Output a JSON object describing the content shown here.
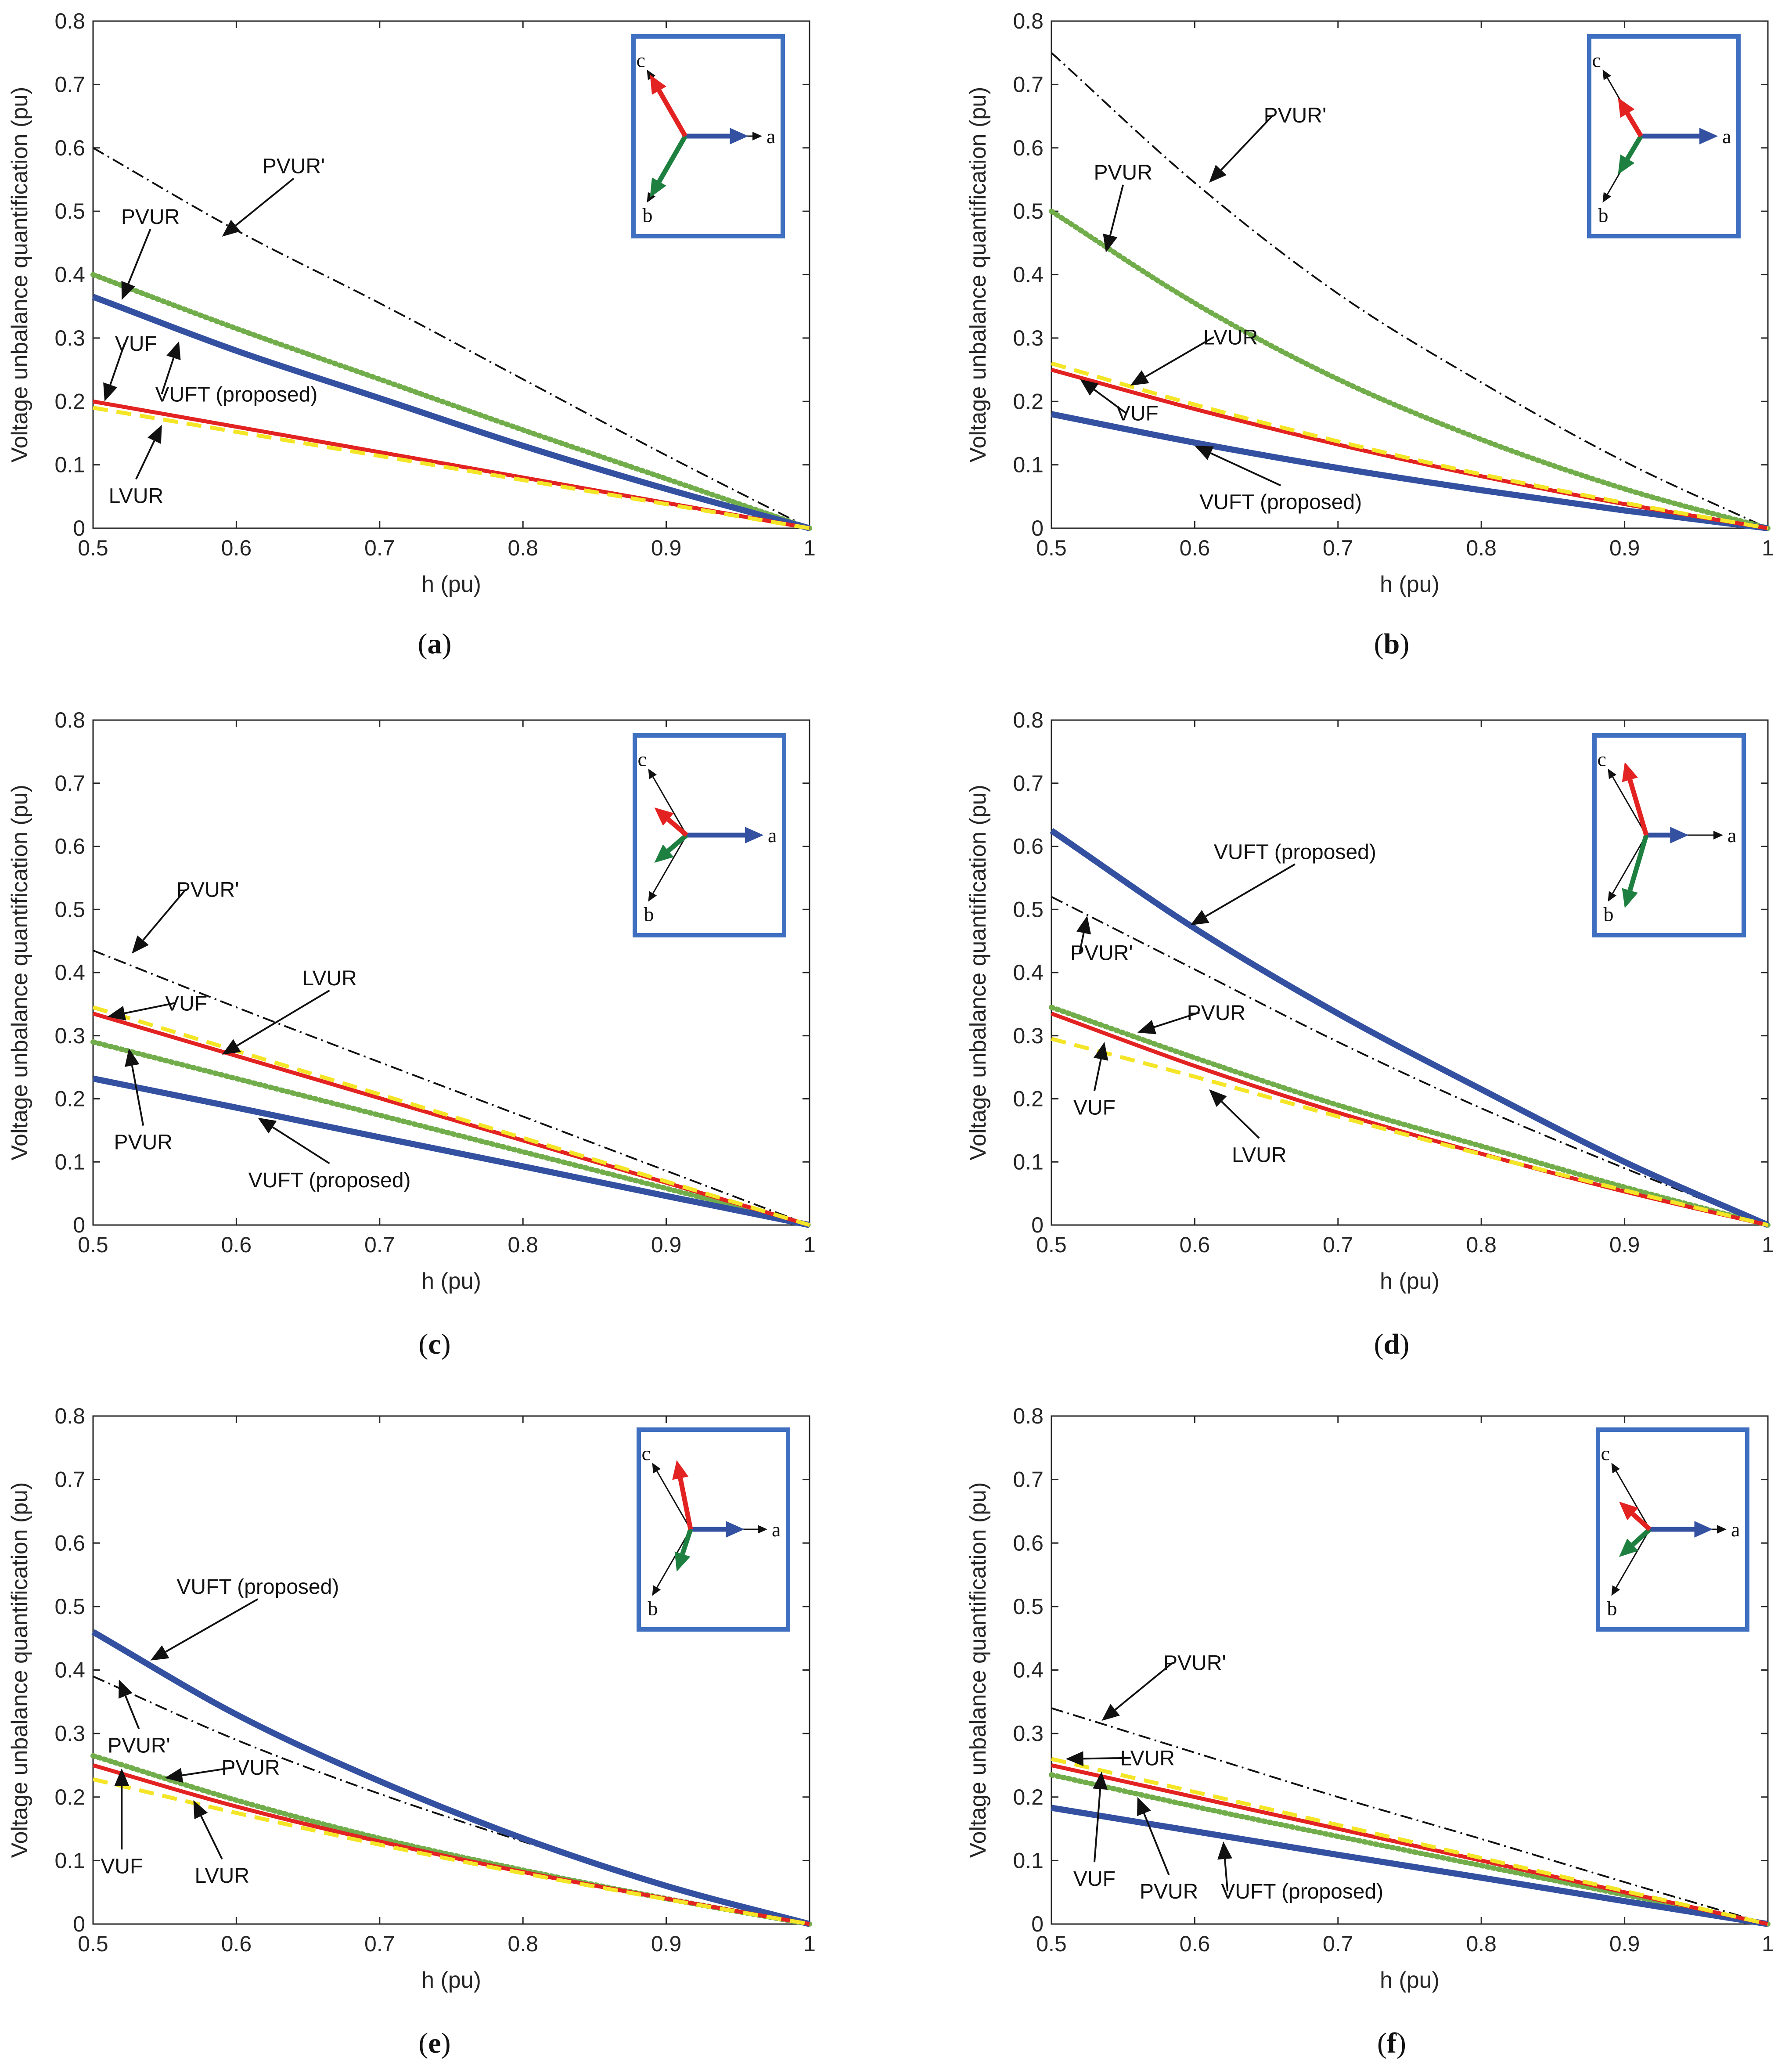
{
  "colors": {
    "VUFT": "#3451a1",
    "VUF": "#e32322",
    "LVUR": "#f4e526",
    "PVUR": "#72ad4b",
    "PVUR_prime": "#111111",
    "inset_border": "#3f6fc0",
    "phase_a": "#3451a1",
    "phase_b": "#1e8040",
    "phase_c": "#e32322"
  },
  "chart_data": [
    {
      "id": "a",
      "type": "line",
      "caption": "(a)",
      "caption_letter": "a",
      "xlabel": "h (pu)",
      "ylabel": "Voltage unbalance quantification (pu)",
      "xlim": [
        0.5,
        1
      ],
      "ylim": [
        0,
        0.8
      ],
      "xticks": [
        "0.5",
        "0.6",
        "0.7",
        "0.8",
        "0.9",
        "1"
      ],
      "yticks": [
        "0",
        "0.1",
        "0.2",
        "0.3",
        "0.4",
        "0.5",
        "0.6",
        "0.7",
        "0.8"
      ],
      "x": [
        0.5,
        0.6,
        0.7,
        0.8,
        0.9,
        1.0
      ],
      "series": [
        {
          "name": "PVUR'",
          "values": [
            0.6,
            0.47,
            0.355,
            0.235,
            0.115,
            0.0
          ]
        },
        {
          "name": "PVUR",
          "values": [
            0.4,
            0.315,
            0.235,
            0.155,
            0.078,
            0.0
          ]
        },
        {
          "name": "VUFT (proposed)",
          "values": [
            0.365,
            0.28,
            0.205,
            0.13,
            0.062,
            0.0
          ]
        },
        {
          "name": "VUF",
          "values": [
            0.2,
            0.16,
            0.12,
            0.08,
            0.04,
            0.0
          ]
        },
        {
          "name": "LVUR",
          "values": [
            0.19,
            0.152,
            0.114,
            0.076,
            0.038,
            0.0
          ]
        }
      ],
      "annotations": [
        {
          "text": "PVUR'",
          "x": 0.59,
          "y": 0.46,
          "tx": 0.64,
          "ty": 0.56
        },
        {
          "text": "PVUR",
          "x": 0.52,
          "y": 0.36,
          "tx": 0.54,
          "ty": 0.48
        },
        {
          "text": "VUF",
          "x": 0.508,
          "y": 0.2,
          "tx": 0.53,
          "ty": 0.28
        },
        {
          "text": "VUFT (proposed)",
          "x": 0.56,
          "y": 0.295,
          "tx": 0.6,
          "ty": 0.2
        },
        {
          "text": "LVUR",
          "x": 0.548,
          "y": 0.163,
          "tx": 0.53,
          "ty": 0.04
        }
      ],
      "phasor": {
        "a": [
          1,
          0
        ],
        "b": [
          -0.5,
          -0.866
        ],
        "c": [
          -0.5,
          0.866
        ],
        "ua": [
          0.82,
          0
        ],
        "ub": [
          -0.46,
          -0.8
        ],
        "uc": [
          -0.46,
          0.8
        ]
      }
    },
    {
      "id": "b",
      "type": "line",
      "caption": "(b)",
      "caption_letter": "b",
      "xlabel": "h (pu)",
      "ylabel": "Voltage unbalance quantification (pu)",
      "xlim": [
        0.5,
        1
      ],
      "ylim": [
        0,
        0.8
      ],
      "xticks": [
        "0.5",
        "0.6",
        "0.7",
        "0.8",
        "0.9",
        "1"
      ],
      "yticks": [
        "0",
        "0.1",
        "0.2",
        "0.3",
        "0.4",
        "0.5",
        "0.6",
        "0.7",
        "0.8"
      ],
      "x": [
        0.5,
        0.6,
        0.7,
        0.8,
        0.9,
        1.0
      ],
      "series": [
        {
          "name": "PVUR'",
          "values": [
            0.75,
            0.545,
            0.37,
            0.23,
            0.105,
            0.0
          ]
        },
        {
          "name": "PVUR",
          "values": [
            0.5,
            0.355,
            0.235,
            0.14,
            0.062,
            0.0
          ]
        },
        {
          "name": "LVUR",
          "values": [
            0.26,
            0.195,
            0.137,
            0.085,
            0.04,
            0.0
          ]
        },
        {
          "name": "VUF",
          "values": [
            0.25,
            0.188,
            0.132,
            0.082,
            0.038,
            0.0
          ]
        },
        {
          "name": "VUFT (proposed)",
          "values": [
            0.18,
            0.135,
            0.095,
            0.06,
            0.028,
            0.0
          ]
        }
      ],
      "annotations": [
        {
          "text": "PVUR'",
          "x": 0.61,
          "y": 0.545,
          "tx": 0.67,
          "ty": 0.64
        },
        {
          "text": "PVUR",
          "x": 0.538,
          "y": 0.435,
          "tx": 0.55,
          "ty": 0.55
        },
        {
          "text": "LVUR",
          "x": 0.555,
          "y": 0.225,
          "tx": 0.625,
          "ty": 0.29
        },
        {
          "text": "VUF",
          "x": 0.52,
          "y": 0.235,
          "tx": 0.56,
          "ty": 0.17
        },
        {
          "text": "VUFT (proposed)",
          "x": 0.6,
          "y": 0.13,
          "tx": 0.66,
          "ty": 0.03
        }
      ],
      "phasor": {
        "a": [
          1,
          0
        ],
        "b": [
          -0.5,
          -0.866
        ],
        "c": [
          -0.5,
          0.866
        ],
        "ua": [
          1.0,
          0
        ],
        "ub": [
          -0.3,
          -0.5
        ],
        "uc": [
          -0.3,
          0.5
        ]
      }
    },
    {
      "id": "c",
      "type": "line",
      "caption": "(c)",
      "caption_letter": "c",
      "xlabel": "h (pu)",
      "ylabel": "Voltage unbalance quantification (pu)",
      "xlim": [
        0.5,
        1
      ],
      "ylim": [
        0,
        0.8
      ],
      "xticks": [
        "0.5",
        "0.6",
        "0.7",
        "0.8",
        "0.9",
        "1"
      ],
      "yticks": [
        "0",
        "0.1",
        "0.2",
        "0.3",
        "0.4",
        "0.5",
        "0.6",
        "0.7",
        "0.8"
      ],
      "x": [
        0.5,
        0.6,
        0.7,
        0.8,
        0.9,
        1.0
      ],
      "series": [
        {
          "name": "PVUR'",
          "values": [
            0.435,
            0.345,
            0.258,
            0.172,
            0.086,
            0.0
          ]
        },
        {
          "name": "LVUR",
          "values": [
            0.345,
            0.276,
            0.207,
            0.138,
            0.069,
            0.0
          ]
        },
        {
          "name": "VUF",
          "values": [
            0.335,
            0.268,
            0.201,
            0.134,
            0.067,
            0.0
          ]
        },
        {
          "name": "PVUR",
          "values": [
            0.29,
            0.232,
            0.174,
            0.116,
            0.058,
            0.0
          ]
        },
        {
          "name": "VUFT (proposed)",
          "values": [
            0.232,
            0.186,
            0.139,
            0.093,
            0.046,
            0.0
          ]
        }
      ],
      "annotations": [
        {
          "text": "PVUR'",
          "x": 0.527,
          "y": 0.43,
          "tx": 0.58,
          "ty": 0.52
        },
        {
          "text": "VUF",
          "x": 0.51,
          "y": 0.33,
          "tx": 0.565,
          "ty": 0.34
        },
        {
          "text": "LVUR",
          "x": 0.59,
          "y": 0.27,
          "tx": 0.665,
          "ty": 0.38
        },
        {
          "text": "PVUR",
          "x": 0.525,
          "y": 0.28,
          "tx": 0.535,
          "ty": 0.12
        },
        {
          "text": "VUFT (proposed)",
          "x": 0.615,
          "y": 0.17,
          "tx": 0.665,
          "ty": 0.06
        }
      ],
      "phasor": {
        "a": [
          1,
          0
        ],
        "b": [
          -0.5,
          -0.866
        ],
        "c": [
          -0.5,
          0.866
        ],
        "ua": [
          1.0,
          0
        ],
        "ub": [
          -0.42,
          -0.36
        ],
        "uc": [
          -0.42,
          0.36
        ]
      }
    },
    {
      "id": "d",
      "type": "line",
      "caption": "(d)",
      "caption_letter": "d",
      "xlabel": "h (pu)",
      "ylabel": "Voltage unbalance quantification (pu)",
      "xlim": [
        0.5,
        1
      ],
      "ylim": [
        0,
        0.8
      ],
      "xticks": [
        "0.5",
        "0.6",
        "0.7",
        "0.8",
        "0.9",
        "1"
      ],
      "yticks": [
        "0",
        "0.1",
        "0.2",
        "0.3",
        "0.4",
        "0.5",
        "0.6",
        "0.7",
        "0.8"
      ],
      "x": [
        0.5,
        0.6,
        0.7,
        0.8,
        0.9,
        1.0
      ],
      "series": [
        {
          "name": "VUFT (proposed)",
          "values": [
            0.625,
            0.47,
            0.335,
            0.215,
            0.1,
            0.0
          ]
        },
        {
          "name": "PVUR'",
          "values": [
            0.52,
            0.405,
            0.29,
            0.185,
            0.09,
            0.0
          ]
        },
        {
          "name": "PVUR",
          "values": [
            0.345,
            0.265,
            0.19,
            0.125,
            0.06,
            0.0
          ]
        },
        {
          "name": "VUF",
          "values": [
            0.335,
            0.252,
            0.178,
            0.113,
            0.053,
            0.0
          ]
        },
        {
          "name": "LVUR",
          "values": [
            0.295,
            0.235,
            0.172,
            0.112,
            0.055,
            0.0
          ]
        }
      ],
      "annotations": [
        {
          "text": "VUFT (proposed)",
          "x": 0.597,
          "y": 0.475,
          "tx": 0.67,
          "ty": 0.58
        },
        {
          "text": "PVUR'",
          "x": 0.525,
          "y": 0.49,
          "tx": 0.535,
          "ty": 0.42
        },
        {
          "text": "PVUR",
          "x": 0.56,
          "y": 0.305,
          "tx": 0.615,
          "ty": 0.325
        },
        {
          "text": "VUF",
          "x": 0.537,
          "y": 0.29,
          "tx": 0.53,
          "ty": 0.175
        },
        {
          "text": "LVUR",
          "x": 0.61,
          "y": 0.215,
          "tx": 0.645,
          "ty": 0.1
        }
      ],
      "phasor": {
        "a": [
          1,
          0
        ],
        "b": [
          -0.5,
          -0.866
        ],
        "c": [
          -0.5,
          0.866
        ],
        "ua": [
          0.55,
          0
        ],
        "ub": [
          -0.28,
          -0.95
        ],
        "uc": [
          -0.28,
          0.95
        ]
      }
    },
    {
      "id": "e",
      "type": "line",
      "caption": "(e)",
      "caption_letter": "e",
      "xlabel": "h (pu)",
      "ylabel": "Voltage unbalance quantification (pu)",
      "xlim": [
        0.5,
        1
      ],
      "ylim": [
        0,
        0.8
      ],
      "xticks": [
        "0.5",
        "0.6",
        "0.7",
        "0.8",
        "0.9",
        "1"
      ],
      "yticks": [
        "0",
        "0.1",
        "0.2",
        "0.3",
        "0.4",
        "0.5",
        "0.6",
        "0.7",
        "0.8"
      ],
      "x": [
        0.5,
        0.6,
        0.7,
        0.8,
        0.9,
        1.0
      ],
      "series": [
        {
          "name": "VUFT (proposed)",
          "values": [
            0.46,
            0.33,
            0.225,
            0.135,
            0.06,
            0.0
          ]
        },
        {
          "name": "PVUR'",
          "values": [
            0.39,
            0.29,
            0.205,
            0.13,
            0.06,
            0.0
          ]
        },
        {
          "name": "PVUR",
          "values": [
            0.265,
            0.195,
            0.135,
            0.085,
            0.04,
            0.0
          ]
        },
        {
          "name": "VUF",
          "values": [
            0.25,
            0.185,
            0.13,
            0.082,
            0.04,
            0.0
          ]
        },
        {
          "name": "LVUR",
          "values": [
            0.228,
            0.175,
            0.125,
            0.08,
            0.039,
            0.0
          ]
        }
      ],
      "annotations": [
        {
          "text": "VUFT (proposed)",
          "x": 0.54,
          "y": 0.415,
          "tx": 0.615,
          "ty": 0.52
        },
        {
          "text": "PVUR'",
          "x": 0.518,
          "y": 0.385,
          "tx": 0.532,
          "ty": 0.27
        },
        {
          "text": "PVUR",
          "x": 0.55,
          "y": 0.23,
          "tx": 0.61,
          "ty": 0.235
        },
        {
          "text": "VUF",
          "x": 0.52,
          "y": 0.245,
          "tx": 0.52,
          "ty": 0.08
        },
        {
          "text": "LVUR",
          "x": 0.57,
          "y": 0.195,
          "tx": 0.59,
          "ty": 0.065
        }
      ],
      "phasor": {
        "a": [
          1,
          0
        ],
        "b": [
          -0.5,
          -0.866
        ],
        "c": [
          -0.5,
          0.866
        ],
        "ua": [
          0.7,
          0
        ],
        "ub": [
          -0.18,
          -0.55
        ],
        "uc": [
          -0.18,
          0.9
        ]
      }
    },
    {
      "id": "f",
      "type": "line",
      "caption": "(f)",
      "caption_letter": "f",
      "xlabel": "h (pu)",
      "ylabel": "Voltage unbalance quantification (pu)",
      "xlim": [
        0.5,
        1
      ],
      "ylim": [
        0,
        0.8
      ],
      "xticks": [
        "0.5",
        "0.6",
        "0.7",
        "0.8",
        "0.9",
        "1"
      ],
      "yticks": [
        "0",
        "0.1",
        "0.2",
        "0.3",
        "0.4",
        "0.5",
        "0.6",
        "0.7",
        "0.8"
      ],
      "x": [
        0.5,
        0.6,
        0.7,
        0.8,
        0.9,
        1.0
      ],
      "series": [
        {
          "name": "PVUR'",
          "values": [
            0.34,
            0.27,
            0.2,
            0.134,
            0.066,
            0.0
          ]
        },
        {
          "name": "LVUR",
          "values": [
            0.26,
            0.208,
            0.156,
            0.104,
            0.052,
            0.0
          ]
        },
        {
          "name": "VUF",
          "values": [
            0.25,
            0.2,
            0.15,
            0.1,
            0.05,
            0.0
          ]
        },
        {
          "name": "PVUR",
          "values": [
            0.235,
            0.185,
            0.138,
            0.092,
            0.046,
            0.0
          ]
        },
        {
          "name": "VUFT (proposed)",
          "values": [
            0.183,
            0.146,
            0.109,
            0.073,
            0.036,
            0.0
          ]
        }
      ],
      "annotations": [
        {
          "text": "PVUR'",
          "x": 0.535,
          "y": 0.32,
          "tx": 0.6,
          "ty": 0.4
        },
        {
          "text": "LVUR",
          "x": 0.51,
          "y": 0.26,
          "tx": 0.567,
          "ty": 0.25
        },
        {
          "text": "VUF",
          "x": 0.535,
          "y": 0.24,
          "tx": 0.53,
          "ty": 0.06
        },
        {
          "text": "PVUR",
          "x": 0.56,
          "y": 0.2,
          "tx": 0.582,
          "ty": 0.04
        },
        {
          "text": "VUFT (proposed)",
          "x": 0.62,
          "y": 0.13,
          "tx": 0.675,
          "ty": 0.04
        }
      ],
      "phasor": {
        "a": [
          1,
          0
        ],
        "b": [
          -0.5,
          -0.866
        ],
        "c": [
          -0.5,
          0.866
        ],
        "ua": [
          0.82,
          0
        ],
        "ub": [
          -0.4,
          -0.36
        ],
        "uc": [
          -0.4,
          0.36
        ]
      }
    }
  ]
}
